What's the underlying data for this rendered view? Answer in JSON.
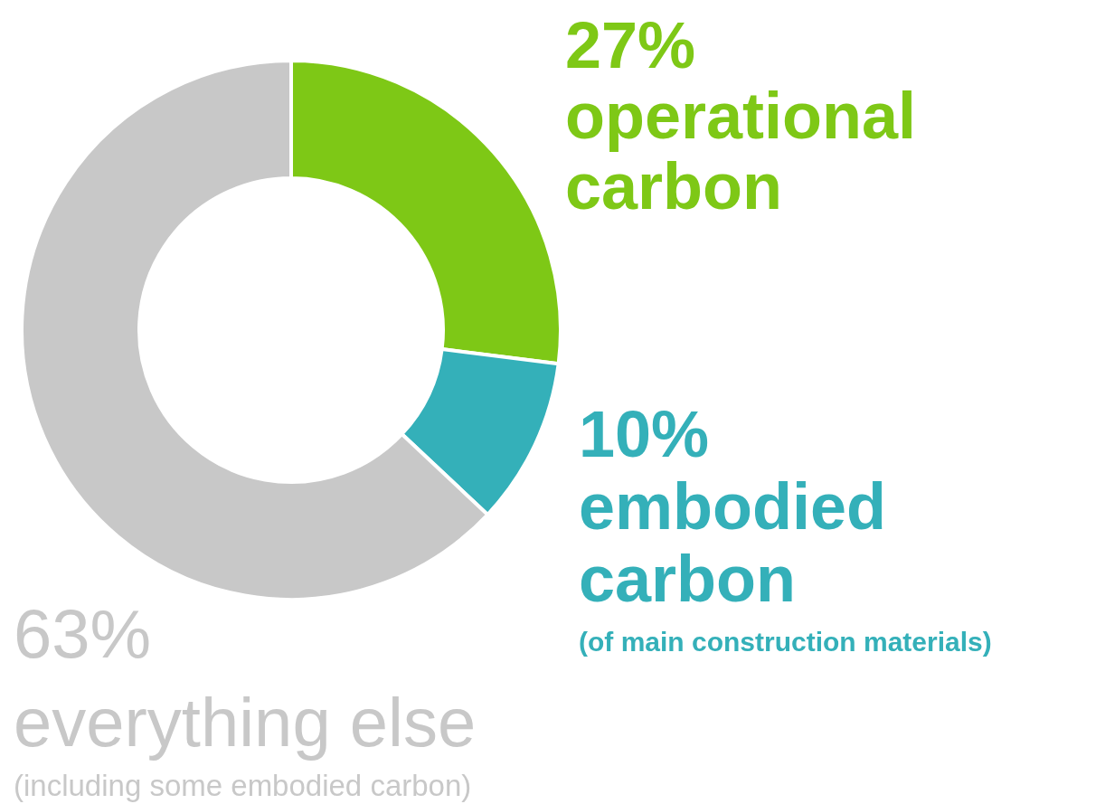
{
  "chart_data": {
    "type": "donut",
    "categories": [
      "operational carbon",
      "embodied carbon",
      "everything else"
    ],
    "values": [
      27,
      10,
      63
    ],
    "colors": [
      "#7ec816",
      "#34b0b9",
      "#c8c8c8"
    ],
    "value_labels": [
      "27%",
      "10%",
      "63%"
    ],
    "annotations": [
      "(of main construction materials)",
      "(including some embodied carbon)"
    ]
  }
}
